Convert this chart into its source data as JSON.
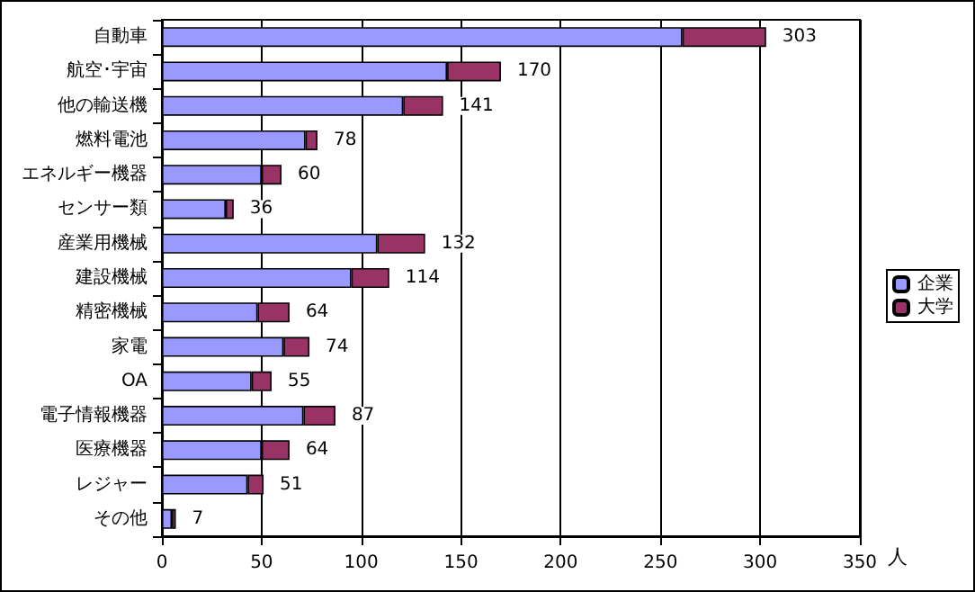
{
  "chart_data": {
    "type": "bar",
    "orientation": "horizontal",
    "stacked": true,
    "categories": [
      "自動車",
      "航空･宇宙",
      "他の輸送機",
      "燃料電池",
      "エネルギー機器",
      "センサー類",
      "産業用機械",
      "建設機械",
      "精密機械",
      "家電",
      "OA",
      "電子情報機器",
      "医療機器",
      "レジャー",
      "その他"
    ],
    "series": [
      {
        "name": "企業",
        "color": "#9999ff",
        "values": [
          261,
          143,
          121,
          72,
          50,
          32,
          108,
          95,
          48,
          61,
          45,
          71,
          50,
          43,
          5
        ]
      },
      {
        "name": "大学",
        "color": "#993366",
        "values": [
          42,
          27,
          20,
          6,
          10,
          4,
          24,
          19,
          16,
          13,
          10,
          16,
          14,
          8,
          2
        ]
      }
    ],
    "totals": [
      "303",
      "170",
      "141",
      "78",
      "60",
      "36",
      "132",
      "114",
      "64",
      "74",
      "55",
      "87",
      "64",
      "51",
      "7"
    ],
    "xlabel": "人",
    "xlim": [
      0,
      350
    ],
    "xticks": [
      0,
      50,
      100,
      150,
      200,
      250,
      300,
      350
    ],
    "grid": "x",
    "legend": "right"
  }
}
